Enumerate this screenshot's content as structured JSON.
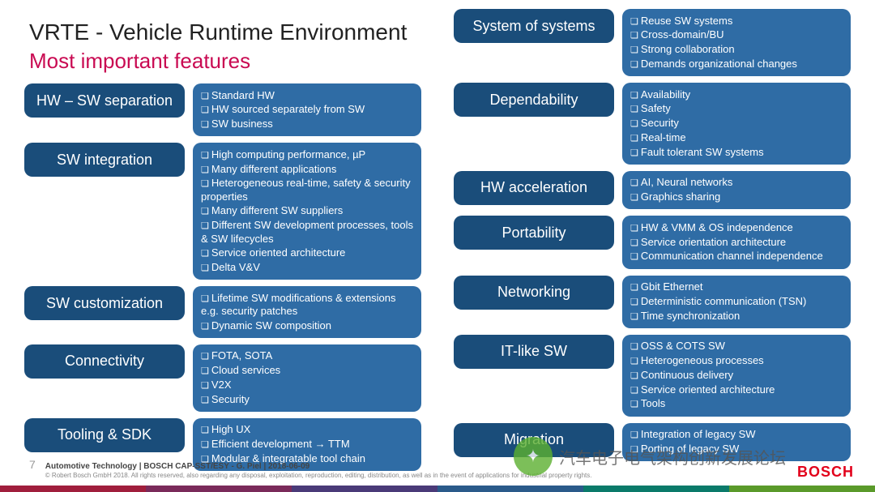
{
  "colors": {
    "primary": "#1a4d7a",
    "primary_light": "#2f6ca5",
    "accent": "#c90a52",
    "title": "#222222",
    "bar": [
      "#a01e3c",
      "#7a2a5a",
      "#4a3a78",
      "#2a5a8a",
      "#0a7a6a",
      "#5a9a2a"
    ]
  },
  "header": {
    "title": "VRTE - Vehicle Runtime Environment",
    "subtitle": "Most important features"
  },
  "left_features": [
    {
      "label": "HW – SW separation",
      "items": [
        "Standard HW",
        "HW sourced separately from SW",
        "SW business"
      ]
    },
    {
      "label": "SW integration",
      "items": [
        "High computing performance, µP",
        "Many different applications",
        "Heterogeneous real-time, safety & security properties",
        "Many different SW suppliers",
        "Different SW development processes, tools & SW lifecycles",
        "Service oriented architecture",
        "Delta V&V"
      ]
    },
    {
      "label": "SW customization",
      "items": [
        "Lifetime SW modifications & extensions e.g. security patches",
        "Dynamic SW composition"
      ]
    },
    {
      "label": "Connectivity",
      "items": [
        "FOTA, SOTA",
        "Cloud services",
        "V2X",
        "Security"
      ]
    },
    {
      "label": "Tooling & SDK",
      "items": [
        "High UX",
        "Efficient development → TTM",
        "Modular & integratable tool chain"
      ]
    }
  ],
  "right_features": [
    {
      "label": "System of systems",
      "items": [
        "Reuse SW systems",
        "Cross-domain/BU",
        "Strong collaboration",
        "Demands organizational changes"
      ]
    },
    {
      "label": "Dependability",
      "items": [
        "Availability",
        "Safety",
        "Security",
        "Real-time",
        "Fault tolerant SW systems"
      ]
    },
    {
      "label": "HW acceleration",
      "items": [
        "AI, Neural networks",
        "Graphics sharing"
      ]
    },
    {
      "label": "Portability",
      "items": [
        "HW & VMM & OS  independence",
        "Service orientation architecture",
        "Communication channel independence"
      ]
    },
    {
      "label": "Networking",
      "items": [
        "Gbit Ethernet",
        "Deterministic communication (TSN)",
        "Time synchronization"
      ]
    },
    {
      "label": "IT-like SW",
      "items": [
        "OSS & COTS SW",
        "Heterogeneous processes",
        "Continuous delivery",
        "Service oriented architecture",
        "Tools"
      ]
    },
    {
      "label": "Migration",
      "items": [
        "Integration of legacy SW",
        "Porting of legacy SW"
      ]
    }
  ],
  "footer": {
    "page": "7",
    "line1": "Automotive Technology | BOSCH CAP-SST/ESY - G. Piel | 2018-06-09",
    "line2": "© Robert Bosch GmbH 2018. All rights reserved, also regarding any disposal, exploitation, reproduction, editing, distribution, as well as in the event of applications for industrial property rights."
  },
  "logo": "BOSCH",
  "watermark": "汽车电子电气架构创新发展论坛"
}
